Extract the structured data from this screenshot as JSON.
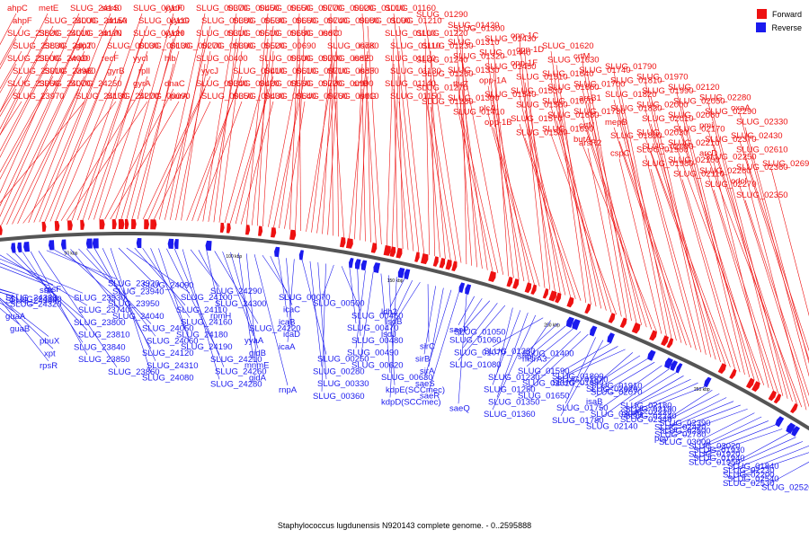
{
  "title": "Staphylococcus lugdunensis N920143 complete genome. - 0..2595888",
  "legend": [
    {
      "label": "Forward",
      "color": "#ee1111"
    },
    {
      "label": "Reverse",
      "color": "#1a1aee"
    }
  ],
  "colors": {
    "forward": "#ee1111",
    "reverse": "#1a1aee",
    "backbone": "#555555"
  },
  "ticks": [
    "2550 kbp",
    "50 kbp",
    "100 kbp",
    "150 kbp",
    "200 kbp",
    "250 kbp",
    "300 kbp"
  ],
  "forward_labels": [
    "ahpC",
    "ahpF",
    "SLUG_23820",
    "SLUG_23830",
    "SLUG_23900",
    "SLUG_23910",
    "SLUG_23960",
    "SLUG_23970",
    "metE",
    "SLUG_24000",
    "SLUG_24010",
    "SLUG_24020",
    "SLUG_24030",
    "SLUG_23980",
    "SLUG_24070",
    "SLUG_24130",
    "SLUG_24140",
    "SLUG_24150",
    "SLUG_24170",
    "glpT",
    "vraD",
    "vraE",
    "SLUG_24250",
    "SLUG_24270",
    "serS",
    "dnaA",
    "dnaN",
    "SLUG_00030",
    "recF",
    "gyrB",
    "gyrA",
    "SLUG_00090",
    "SLUG_00100",
    "SLUG_00110",
    "SLUG_00120",
    "SLUG_00130",
    "yycI",
    "rplI",
    "dnaC",
    "purA",
    "yycF",
    "yycG",
    "yycH",
    "SLUG_00270",
    "hlb",
    "yycJ",
    "SLUG_00340",
    "SLUG_00350",
    "SLUG_00370",
    "SLUG_00380",
    "SLUG_00310",
    "SLUG_00390",
    "SLUG_00400",
    "SLUG_00410",
    "SLUG_00420",
    "SLUG_00430",
    "SLUG_00450",
    "SLUG_00530",
    "SLUG_00510",
    "SLUG_00520",
    "SLUG_00600",
    "SLUG_00610",
    "SLUG_00560",
    "SLUG_00640",
    "SLUG_00650",
    "SLUG_00660",
    "SLUG_00680",
    "SLUG_00690",
    "SLUG_00700",
    "SLUG_00710",
    "SLUG_00720",
    "SLUG_00760",
    "SLUG_00770",
    "SLUG_00740",
    "SLUG_00670",
    "SLUG_00780",
    "SLUG_00820",
    "SLUG_00830",
    "SLUG_00900",
    "SLUG_00910",
    "SLUG_00920",
    "SLUG_00980",
    "isdC",
    "isdK",
    "isdE",
    "isdF",
    "srtB",
    "isdG",
    "SLUG_01010",
    "SLUG_01090",
    "SLUG_01100",
    "SLUG_01110",
    "SLUG_01120",
    "SLUG_01130",
    "SLUG_01140",
    "SLUG_01150",
    "SLUG_01160",
    "SLUG_01210",
    "SLUG_01220",
    "SLUG_01230",
    "SLUG_01240",
    "SLUG_01260",
    "SLUG_01270",
    "SLUG_01280",
    "SLUG_01290",
    "SLUG_01300",
    "SLUG_01310",
    "SLUG_01320",
    "SLUG_01330",
    "thrZ",
    "SLUG_01390",
    "SLUG_01410",
    "SLUG_01420",
    "SLUG_01430",
    "SLUG_01440",
    "SLUG_01450",
    "opp-1A",
    "SLUG_01540",
    "plcA",
    "opp-1B",
    "opp-1C",
    "opp-1D",
    "opp-1F",
    "SLUG_01510",
    "SLUG_01530",
    "SLUG_01560",
    "SLUG_01570",
    "SLUG_01580",
    "SLUG_01620",
    "SLUG_01630",
    "SLUG_01640",
    "SLUG_01660",
    "SLUG_01670",
    "SLUG_01680",
    "SLUG_01690",
    "arsR2",
    "crtM",
    "SLUG_01740",
    "SLUG_01700",
    "arsB1",
    "SLUG_01730",
    "crtN",
    "butA",
    "cspC",
    "SLUG_01790",
    "SLUG_01810",
    "SLUG_01820",
    "SLUG_01830",
    "mepB",
    "SLUG_01890",
    "SLUG_01960",
    "SLUG_01980",
    "SLUG_01970",
    "SLUG_01990",
    "SLUG_02000",
    "SLUG_02010",
    "SLUG_02030",
    "SLUG_02090",
    "SLUG_02100",
    "SLUG_02110",
    "SLUG_02120",
    "SLUG_02050",
    "SLUG_02060",
    "SLUG_02170",
    "SLUG_02210",
    "SLUG_02250",
    "SLUG_02260",
    "SLUG_02270",
    "SLUG_02280",
    "SLUG_02290",
    "pmi",
    "SLUG_02370",
    "arcD",
    "SLUG_02360",
    "odcI",
    "SLUG_02350",
    "oxaA",
    "SLUG_02330",
    "SLUG_02430",
    "SLUG_02610",
    "SLUG_02690"
  ],
  "reverse_labels": [
    "SLUG_24350",
    "SLUG_24340",
    "SLUG_24330",
    "SLUG_24320",
    "guaA",
    "guaB",
    "pbuX",
    "xpt",
    "rpsR",
    "ssb",
    "rpsF",
    "SLUG_23930",
    "SLUG_23740",
    "SLUG_23800",
    "SLUG_23810",
    "SLUG_23840",
    "SLUG_23850",
    "SLUG_23860",
    "SLUG_23920",
    "SLUG_23940",
    "SLUG_23950",
    "SLUG_24040",
    "SLUG_24050",
    "SLUG_24060",
    "SLUG_24120",
    "SLUG_24310",
    "SLUG_24080",
    "SLUG_24090",
    "SLUG_24100",
    "SLUG_24110",
    "SLUG_24160",
    "SLUG_24180",
    "SLUG_24190",
    "SLUG_24210",
    "SLUG_24260",
    "SLUG_24280",
    "SLUG_24290",
    "SLUG_24300",
    "rpmH",
    "SLUG_24220",
    "yyaA",
    "gidB",
    "mnmE",
    "gidA",
    "rnpA",
    "SLUG_00070",
    "icaC",
    "icaB",
    "icaD",
    "icaA",
    "SLUG_00250",
    "SLUG_00280",
    "SLUG_00330",
    "SLUG_00360",
    "SLUG_00500",
    "SLUG_00460",
    "SLUG_00470",
    "SLUG_00480",
    "SLUG_00490",
    "SLUG_00620",
    "SLUG_00630",
    "kdpE(SCCmec)",
    "kdpD(SCCmec)",
    "ldh2",
    "lsdB",
    "lsdJ",
    "sirC",
    "sirB",
    "sirA",
    "saeS",
    "saeR",
    "saeQ",
    "saeP",
    "SLUG_01050",
    "SLUG_01060",
    "SLUG_01070",
    "SLUG_01080",
    "SLUG_01230",
    "SLUG_01250",
    "SLUG_01350",
    "SLUG_01360",
    "SLUG_01380",
    "SLUG_01400",
    "shpI",
    "msrA3",
    "SLUG_01590",
    "SLUG_01610",
    "SLUG_01650",
    "SLUG_01750",
    "SLUG_01780",
    "SLUG_01800",
    "SLUG_01870",
    "SLUG_01880",
    "SLUG_01910",
    "SLUG_02020",
    "SLUG_02070",
    "isaB",
    "SLUG_02080",
    "SLUG_02140",
    "SLUG_02180",
    "SLUG_02190",
    "SLUG_02220",
    "SLUG_02240",
    "SLUG_02340",
    "SLUG_02390",
    "SLUG_02420",
    "SLUG_02500",
    "SLUG_02780",
    "pcp",
    "SLUG_03000",
    "SLUG_03020",
    "SLUG_01930",
    "SLUG_01920",
    "SLUG_01940",
    "SLUG_01950",
    "SLUG_01840",
    "SLUG_02230",
    "SLUG_02200",
    "SLUG_02540",
    "SLUG_02530",
    "SLUG_02520"
  ]
}
